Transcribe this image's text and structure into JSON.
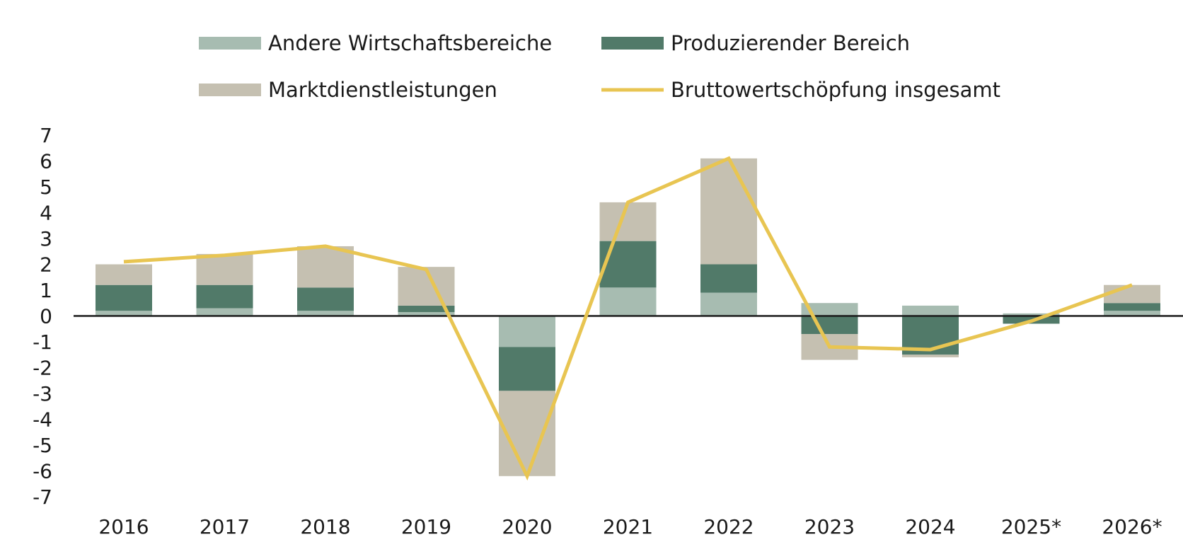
{
  "chart_data": {
    "type": "bar",
    "stacked": true,
    "title": "",
    "xlabel": "",
    "ylabel": "",
    "categories": [
      "2016",
      "2017",
      "2018",
      "2019",
      "2020",
      "2021",
      "2022",
      "2023",
      "2024",
      "2025*",
      "2026*"
    ],
    "ylim": [
      -7,
      7
    ],
    "yticks": [
      7,
      6,
      5,
      4,
      3,
      2,
      1,
      0,
      -1,
      -2,
      -3,
      -4,
      -5,
      -6,
      -7
    ],
    "legend_position": "top",
    "series": [
      {
        "name": "Andere Wirtschaftsbereiche",
        "kind": "bar",
        "color": "#a7bcb1",
        "values": [
          0.2,
          0.3,
          0.2,
          0.15,
          -1.2,
          1.1,
          0.9,
          0.5,
          0.4,
          0.1,
          0.2
        ]
      },
      {
        "name": "Produzierender Bereich",
        "kind": "bar",
        "color": "#517a69",
        "values": [
          1.0,
          0.9,
          0.9,
          0.25,
          -1.7,
          1.8,
          1.1,
          -0.7,
          -1.5,
          -0.3,
          0.3
        ]
      },
      {
        "name": "Marktdienstleistungen",
        "kind": "bar",
        "color": "#c5c0b1",
        "values": [
          0.8,
          1.2,
          1.6,
          1.5,
          -3.3,
          1.5,
          4.1,
          -1.0,
          -0.1,
          0.0,
          0.7
        ]
      },
      {
        "name": "Bruttowertschöpfung insgesamt",
        "kind": "line",
        "color": "#e8c552",
        "values": [
          2.1,
          2.35,
          2.7,
          1.8,
          -6.2,
          4.4,
          6.1,
          -1.2,
          -1.3,
          -0.2,
          1.2
        ]
      }
    ]
  }
}
